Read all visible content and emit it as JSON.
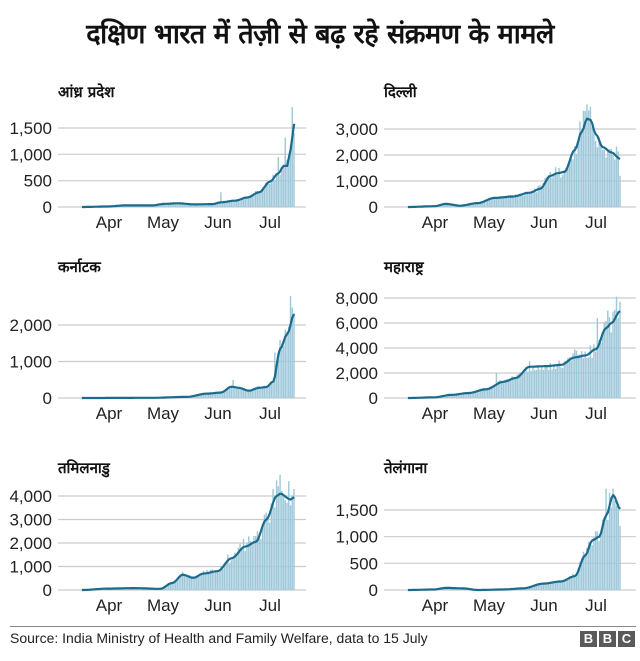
{
  "title": "दक्षिण भारत में तेज़ी से बढ़ रहे संक्रमण के मामले",
  "footer": {
    "source": "Source: India Ministry of Health and Family Welfare, data to 15 July",
    "logo_letters": [
      "B",
      "B",
      "C"
    ]
  },
  "colors": {
    "bars": "#9fc9da",
    "line": "#1d6b8c",
    "grid": "#cccccc",
    "text": "#222222"
  },
  "chart_data": [
    {
      "type": "bar",
      "overlay": "line (7-day rolling average)",
      "title": "आंध्र प्रदेश",
      "xlabel": "",
      "ylabel": "",
      "x_ticks": [
        "Apr",
        "May",
        "Jun",
        "Jul"
      ],
      "y_ticks": [
        0,
        500,
        1000,
        1500
      ],
      "ylim": [
        0,
        1900
      ],
      "grid": true,
      "anchors_daily": [
        [
          0,
          0
        ],
        [
          15,
          10
        ],
        [
          25,
          30
        ],
        [
          40,
          30
        ],
        [
          48,
          60
        ],
        [
          55,
          70
        ],
        [
          65,
          50
        ],
        [
          75,
          55
        ],
        [
          80,
          90
        ],
        [
          88,
          120
        ],
        [
          95,
          180
        ],
        [
          102,
          280
        ],
        [
          108,
          480
        ],
        [
          113,
          640
        ],
        [
          116,
          780
        ],
        [
          118,
          780
        ],
        [
          120,
          1100
        ],
        [
          122,
          1580
        ]
      ],
      "bar_peaks": [
        [
          80,
          280
        ],
        [
          113,
          950
        ],
        [
          117,
          1320
        ],
        [
          121,
          1900
        ]
      ]
    },
    {
      "type": "bar",
      "overlay": "line (7-day rolling average)",
      "title": "दिल्ली",
      "xlabel": "",
      "ylabel": "",
      "x_ticks": [
        "Apr",
        "May",
        "Jun",
        "Jul"
      ],
      "y_ticks": [
        0,
        1000,
        2000,
        3000
      ],
      "ylim": [
        0,
        4000
      ],
      "grid": true,
      "anchors_daily": [
        [
          0,
          0
        ],
        [
          15,
          30
        ],
        [
          22,
          120
        ],
        [
          30,
          50
        ],
        [
          40,
          150
        ],
        [
          50,
          350
        ],
        [
          60,
          400
        ],
        [
          70,
          550
        ],
        [
          76,
          700
        ],
        [
          82,
          1200
        ],
        [
          86,
          1300
        ],
        [
          90,
          1350
        ],
        [
          96,
          2200
        ],
        [
          100,
          2900
        ],
        [
          103,
          3400
        ],
        [
          105,
          3350
        ],
        [
          108,
          2800
        ],
        [
          112,
          2300
        ],
        [
          117,
          2100
        ],
        [
          122,
          1850
        ]
      ],
      "bar_peaks": [
        [
          101,
          3700
        ],
        [
          103,
          3950
        ],
        [
          109,
          2300
        ],
        [
          118,
          2000
        ],
        [
          122,
          1200
        ]
      ]
    },
    {
      "type": "bar",
      "overlay": "line (7-day rolling average)",
      "title": "कर्नाटक",
      "xlabel": "",
      "ylabel": "",
      "x_ticks": [
        "Apr",
        "May",
        "Jun",
        "Jul"
      ],
      "y_ticks": [
        0,
        1000,
        2000
      ],
      "ylim": [
        0,
        2800
      ],
      "grid": true,
      "anchors_daily": [
        [
          0,
          0
        ],
        [
          40,
          5
        ],
        [
          60,
          30
        ],
        [
          72,
          120
        ],
        [
          80,
          150
        ],
        [
          86,
          310
        ],
        [
          90,
          280
        ],
        [
          96,
          200
        ],
        [
          102,
          280
        ],
        [
          106,
          300
        ],
        [
          110,
          450
        ],
        [
          114,
          1350
        ],
        [
          118,
          1750
        ],
        [
          122,
          2300
        ]
      ],
      "bar_peaks": [
        [
          87,
          500
        ],
        [
          111,
          1250
        ],
        [
          115,
          1500
        ],
        [
          120,
          2800
        ]
      ]
    },
    {
      "type": "bar",
      "overlay": "line (7-day rolling average)",
      "title": "महाराष्ट्र",
      "xlabel": "",
      "ylabel": "",
      "x_ticks": [
        "Apr",
        "May",
        "Jun",
        "Jul"
      ],
      "y_ticks": [
        0,
        2000,
        4000,
        6000,
        8000
      ],
      "ylim": [
        0,
        8200
      ],
      "grid": true,
      "anchors_daily": [
        [
          0,
          0
        ],
        [
          15,
          50
        ],
        [
          25,
          250
        ],
        [
          35,
          400
        ],
        [
          45,
          700
        ],
        [
          55,
          1300
        ],
        [
          62,
          1600
        ],
        [
          70,
          2500
        ],
        [
          80,
          2550
        ],
        [
          88,
          2650
        ],
        [
          96,
          3250
        ],
        [
          102,
          3400
        ],
        [
          108,
          3900
        ],
        [
          114,
          5600
        ],
        [
          117,
          6000
        ],
        [
          122,
          6950
        ]
      ],
      "bar_peaks": [
        [
          51,
          2000
        ],
        [
          109,
          6400
        ],
        [
          115,
          7000
        ],
        [
          120,
          8100
        ]
      ]
    },
    {
      "type": "bar",
      "overlay": "line (7-day rolling average)",
      "title": "तमिलनाडु",
      "xlabel": "",
      "ylabel": "",
      "x_ticks": [
        "Apr",
        "May",
        "Jun",
        "Jul"
      ],
      "y_ticks": [
        0,
        1000,
        2000,
        3000,
        4000
      ],
      "ylim": [
        0,
        4300
      ],
      "grid": true,
      "anchors_daily": [
        [
          0,
          0
        ],
        [
          15,
          60
        ],
        [
          30,
          80
        ],
        [
          45,
          50
        ],
        [
          52,
          300
        ],
        [
          58,
          650
        ],
        [
          64,
          520
        ],
        [
          70,
          700
        ],
        [
          78,
          800
        ],
        [
          86,
          1350
        ],
        [
          94,
          1850
        ],
        [
          100,
          2050
        ],
        [
          106,
          3000
        ],
        [
          112,
          4000
        ],
        [
          114,
          4100
        ],
        [
          120,
          3850
        ],
        [
          122,
          3950
        ]
      ],
      "bar_peaks": [
        [
          58,
          780
        ],
        [
          110,
          4300
        ],
        [
          122,
          4300
        ]
      ]
    },
    {
      "type": "bar",
      "overlay": "line (7-day rolling average)",
      "title": "तेलंगाना",
      "xlabel": "",
      "ylabel": "",
      "x_ticks": [
        "Apr",
        "May",
        "Jun",
        "Jul"
      ],
      "y_ticks": [
        0,
        500,
        1000,
        1500
      ],
      "ylim": [
        0,
        1900
      ],
      "grid": true,
      "anchors_daily": [
        [
          0,
          0
        ],
        [
          15,
          10
        ],
        [
          22,
          40
        ],
        [
          32,
          30
        ],
        [
          40,
          0
        ],
        [
          55,
          10
        ],
        [
          66,
          30
        ],
        [
          78,
          120
        ],
        [
          88,
          160
        ],
        [
          96,
          260
        ],
        [
          102,
          650
        ],
        [
          106,
          930
        ],
        [
          110,
          1000
        ],
        [
          114,
          1400
        ],
        [
          118,
          1780
        ],
        [
          122,
          1520
        ]
      ],
      "bar_peaks": [
        [
          108,
          1100
        ],
        [
          114,
          1900
        ],
        [
          118,
          1900
        ],
        [
          122,
          1200
        ]
      ]
    }
  ]
}
